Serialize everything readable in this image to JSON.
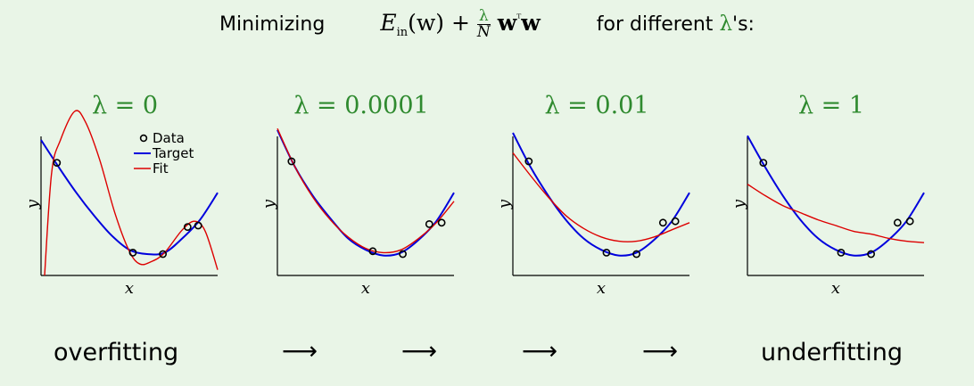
{
  "headline": {
    "prefix": "Minimizing",
    "E": "E",
    "sub_in": "in",
    "w_arg": "(w) +",
    "lambda": "λ",
    "N": "N",
    "w_term": "w",
    "transpose": "ᵀ",
    "w_term2": "w",
    "for_text": "for different",
    "lambda2": "λ",
    "suffix": "'s:"
  },
  "colors": {
    "target": "#0000dd",
    "fit": "#dd0000",
    "title": "#2f8a2f"
  },
  "legend": {
    "data": "Data",
    "target": "Target",
    "fit": "Fit"
  },
  "axis": {
    "x": "x",
    "y": "y"
  },
  "bottom": {
    "left": "overfitting",
    "right": "underfitting",
    "arrow": "⟶"
  },
  "chart_data": [
    {
      "type": "scatter",
      "title": "λ = 0",
      "xlabel": "x",
      "ylabel": "y",
      "legend": [
        "Data",
        "Target",
        "Fit"
      ],
      "legend_position": "top-right",
      "data_points": [
        [
          0.09,
          0.79
        ],
        [
          0.52,
          0.16
        ],
        [
          0.69,
          0.15
        ],
        [
          0.83,
          0.34
        ],
        [
          0.89,
          0.35
        ]
      ],
      "target": [
        [
          0.0,
          0.95
        ],
        [
          0.1,
          0.76
        ],
        [
          0.2,
          0.58
        ],
        [
          0.3,
          0.42
        ],
        [
          0.4,
          0.28
        ],
        [
          0.5,
          0.18
        ],
        [
          0.6,
          0.15
        ],
        [
          0.7,
          0.16
        ],
        [
          0.8,
          0.26
        ],
        [
          0.9,
          0.39
        ],
        [
          1.0,
          0.58
        ]
      ],
      "fit": [
        [
          0.02,
          0.0
        ],
        [
          0.06,
          0.72
        ],
        [
          0.11,
          0.95
        ],
        [
          0.19,
          1.15
        ],
        [
          0.25,
          1.08
        ],
        [
          0.33,
          0.82
        ],
        [
          0.42,
          0.43
        ],
        [
          0.5,
          0.17
        ],
        [
          0.56,
          0.08
        ],
        [
          0.63,
          0.1
        ],
        [
          0.7,
          0.16
        ],
        [
          0.8,
          0.32
        ],
        [
          0.87,
          0.38
        ],
        [
          0.93,
          0.31
        ],
        [
          1.0,
          0.04
        ]
      ]
    },
    {
      "type": "scatter",
      "title": "λ = 0.0001",
      "xlabel": "x",
      "ylabel": "y",
      "data_points": [
        [
          0.08,
          0.8
        ],
        [
          0.54,
          0.17
        ],
        [
          0.71,
          0.15
        ],
        [
          0.86,
          0.36
        ],
        [
          0.93,
          0.37
        ]
      ],
      "target": [
        [
          0.0,
          1.02
        ],
        [
          0.1,
          0.76
        ],
        [
          0.2,
          0.56
        ],
        [
          0.3,
          0.4
        ],
        [
          0.4,
          0.26
        ],
        [
          0.5,
          0.18
        ],
        [
          0.6,
          0.14
        ],
        [
          0.7,
          0.16
        ],
        [
          0.8,
          0.25
        ],
        [
          0.9,
          0.38
        ],
        [
          1.0,
          0.58
        ]
      ],
      "fit": [
        [
          0.0,
          1.03
        ],
        [
          0.1,
          0.76
        ],
        [
          0.2,
          0.55
        ],
        [
          0.3,
          0.39
        ],
        [
          0.4,
          0.27
        ],
        [
          0.5,
          0.19
        ],
        [
          0.6,
          0.16
        ],
        [
          0.7,
          0.18
        ],
        [
          0.8,
          0.26
        ],
        [
          0.9,
          0.37
        ],
        [
          1.0,
          0.52
        ]
      ]
    },
    {
      "type": "scatter",
      "title": "λ = 0.01",
      "xlabel": "x",
      "ylabel": "y",
      "data_points": [
        [
          0.09,
          0.8
        ],
        [
          0.53,
          0.16
        ],
        [
          0.7,
          0.15
        ],
        [
          0.85,
          0.37
        ],
        [
          0.92,
          0.38
        ]
      ],
      "target": [
        [
          0.0,
          1.0
        ],
        [
          0.1,
          0.76
        ],
        [
          0.2,
          0.56
        ],
        [
          0.3,
          0.39
        ],
        [
          0.4,
          0.26
        ],
        [
          0.5,
          0.18
        ],
        [
          0.6,
          0.14
        ],
        [
          0.7,
          0.16
        ],
        [
          0.8,
          0.25
        ],
        [
          0.9,
          0.38
        ],
        [
          1.0,
          0.58
        ]
      ],
      "fit": [
        [
          0.0,
          0.86
        ],
        [
          0.1,
          0.7
        ],
        [
          0.2,
          0.55
        ],
        [
          0.3,
          0.42
        ],
        [
          0.4,
          0.33
        ],
        [
          0.5,
          0.27
        ],
        [
          0.6,
          0.24
        ],
        [
          0.7,
          0.24
        ],
        [
          0.8,
          0.27
        ],
        [
          0.9,
          0.32
        ],
        [
          1.0,
          0.37
        ]
      ]
    },
    {
      "type": "scatter",
      "title": "λ = 1",
      "xlabel": "x",
      "ylabel": "y",
      "data_points": [
        [
          0.09,
          0.79
        ],
        [
          0.53,
          0.16
        ],
        [
          0.7,
          0.15
        ],
        [
          0.85,
          0.37
        ],
        [
          0.92,
          0.38
        ]
      ],
      "target": [
        [
          0.0,
          0.98
        ],
        [
          0.1,
          0.76
        ],
        [
          0.2,
          0.56
        ],
        [
          0.3,
          0.39
        ],
        [
          0.4,
          0.26
        ],
        [
          0.5,
          0.18
        ],
        [
          0.6,
          0.14
        ],
        [
          0.7,
          0.16
        ],
        [
          0.8,
          0.25
        ],
        [
          0.9,
          0.38
        ],
        [
          1.0,
          0.58
        ]
      ],
      "fit": [
        [
          0.0,
          0.64
        ],
        [
          0.1,
          0.56
        ],
        [
          0.2,
          0.49
        ],
        [
          0.3,
          0.44
        ],
        [
          0.4,
          0.39
        ],
        [
          0.5,
          0.35
        ],
        [
          0.6,
          0.31
        ],
        [
          0.7,
          0.29
        ],
        [
          0.8,
          0.26
        ],
        [
          0.9,
          0.24
        ],
        [
          1.0,
          0.23
        ]
      ]
    }
  ]
}
